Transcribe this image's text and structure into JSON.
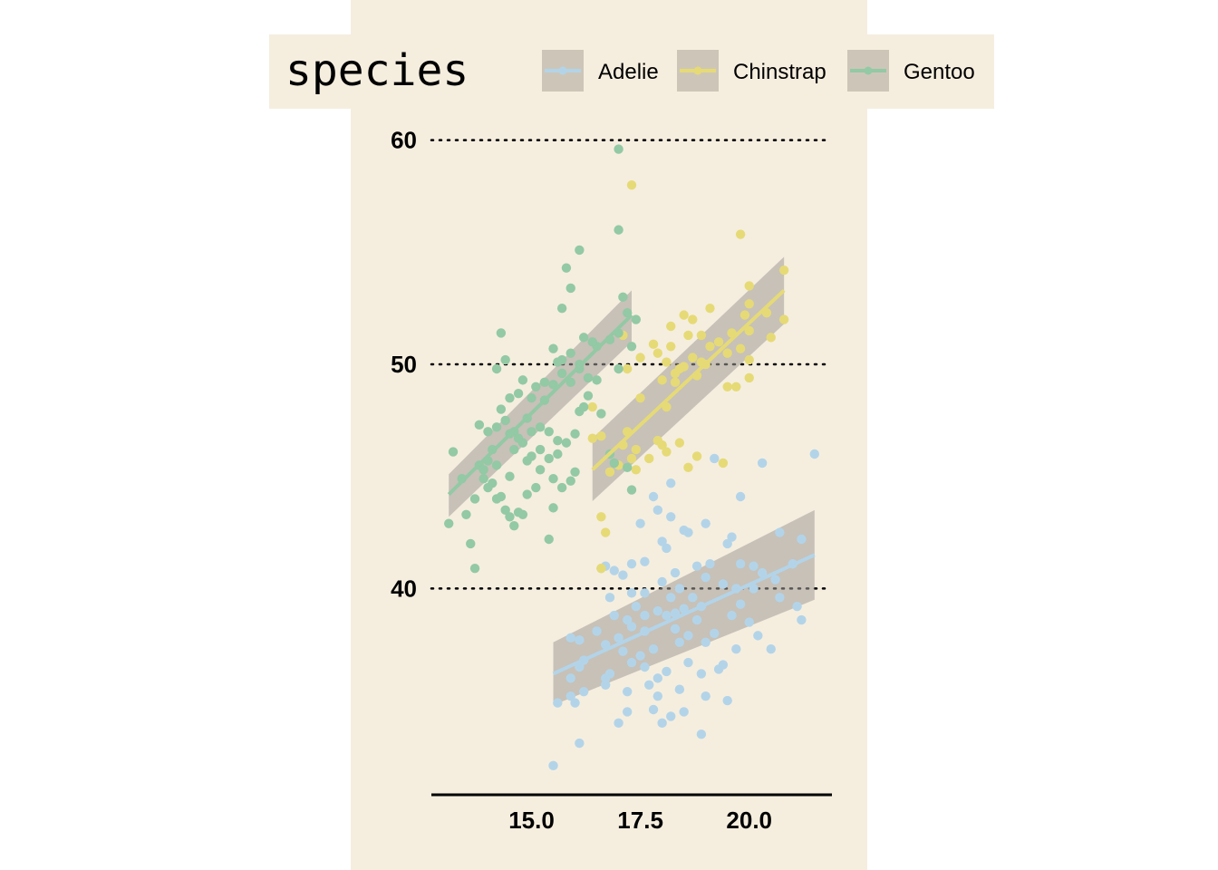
{
  "legend": {
    "title": "species",
    "entries": [
      {
        "name": "Adelie",
        "color": "#b3d4e8"
      },
      {
        "name": "Chinstrap",
        "color": "#e6da76"
      },
      {
        "name": "Gentoo",
        "color": "#93c9a4"
      }
    ]
  },
  "colors": {
    "panel_background": "#f5eedf",
    "ribbon": "#a19d97",
    "grid": "#000000"
  },
  "chart_data": {
    "type": "scatter",
    "title": "",
    "xlabel": "",
    "ylabel": "",
    "xlim": [
      12.7,
      21.9
    ],
    "ylim": [
      30.8,
      61.2
    ],
    "x_ticks": [
      15.0,
      17.5,
      20.0
    ],
    "x_tick_labels": [
      "15.0",
      "17.5",
      "20.0"
    ],
    "y_ticks": [
      40,
      50,
      60
    ],
    "y_tick_labels": [
      "40",
      "50",
      "60"
    ],
    "grid": "horizontal dotted major lines",
    "legend_position": "top",
    "series": [
      {
        "name": "Adelie",
        "color": "#b3d4e8",
        "fit": {
          "x": [
            15.5,
            21.5
          ],
          "y": [
            36.2,
            41.5
          ],
          "ci_low": [
            34.8,
            39.5
          ],
          "ci_high": [
            37.6,
            43.5
          ]
        },
        "points": [
          [
            15.5,
            32.1
          ],
          [
            16.1,
            33.1
          ],
          [
            17.0,
            34.0
          ],
          [
            17.2,
            34.5
          ],
          [
            17.8,
            34.6
          ],
          [
            18.0,
            34.0
          ],
          [
            18.2,
            34.3
          ],
          [
            18.5,
            34.5
          ],
          [
            18.9,
            33.5
          ],
          [
            19.5,
            35.0
          ],
          [
            19.0,
            35.2
          ],
          [
            18.4,
            35.5
          ],
          [
            17.9,
            35.2
          ],
          [
            17.2,
            35.4
          ],
          [
            16.7,
            35.7
          ],
          [
            15.9,
            35.2
          ],
          [
            16.2,
            35.4
          ],
          [
            15.9,
            36.0
          ],
          [
            16.1,
            36.5
          ],
          [
            16.8,
            36.2
          ],
          [
            17.3,
            36.7
          ],
          [
            18.1,
            36.3
          ],
          [
            17.5,
            37.0
          ],
          [
            17.6,
            36.5
          ],
          [
            18.9,
            36.2
          ],
          [
            19.3,
            36.4
          ],
          [
            18.6,
            36.7
          ],
          [
            19.4,
            36.6
          ],
          [
            20.5,
            37.3
          ],
          [
            19.7,
            37.3
          ],
          [
            19.0,
            37.6
          ],
          [
            18.4,
            37.6
          ],
          [
            17.8,
            37.3
          ],
          [
            17.1,
            37.2
          ],
          [
            16.7,
            37.5
          ],
          [
            16.1,
            37.7
          ],
          [
            15.9,
            37.8
          ],
          [
            16.5,
            38.1
          ],
          [
            17.3,
            38.3
          ],
          [
            17.6,
            38.1
          ],
          [
            18.3,
            38.2
          ],
          [
            18.6,
            37.9
          ],
          [
            19.2,
            38.0
          ],
          [
            18.8,
            38.6
          ],
          [
            18.1,
            38.8
          ],
          [
            17.2,
            38.6
          ],
          [
            17.6,
            38.8
          ],
          [
            17.9,
            39.0
          ],
          [
            18.5,
            39.1
          ],
          [
            18.9,
            39.2
          ],
          [
            19.6,
            38.8
          ],
          [
            20.0,
            38.5
          ],
          [
            19.8,
            39.3
          ],
          [
            20.7,
            39.6
          ],
          [
            20.1,
            40.0
          ],
          [
            20.6,
            40.4
          ],
          [
            21.1,
            39.2
          ],
          [
            21.2,
            38.6
          ],
          [
            21.0,
            41.1
          ],
          [
            21.5,
            46.0
          ],
          [
            21.2,
            42.2
          ],
          [
            20.7,
            42.5
          ],
          [
            20.3,
            45.6
          ],
          [
            20.1,
            41.0
          ],
          [
            20.3,
            40.7
          ],
          [
            19.8,
            41.1
          ],
          [
            19.5,
            42.0
          ],
          [
            19.6,
            42.3
          ],
          [
            19.8,
            44.1
          ],
          [
            19.0,
            42.9
          ],
          [
            18.6,
            42.5
          ],
          [
            18.2,
            43.2
          ],
          [
            18.0,
            42.1
          ],
          [
            17.8,
            44.1
          ],
          [
            17.9,
            43.5
          ],
          [
            17.5,
            42.9
          ],
          [
            17.3,
            41.1
          ],
          [
            17.1,
            40.6
          ],
          [
            16.9,
            40.8
          ],
          [
            16.7,
            41.0
          ],
          [
            16.6,
            40.9
          ],
          [
            16.8,
            39.6
          ],
          [
            17.3,
            39.8
          ],
          [
            17.6,
            39.8
          ],
          [
            18.0,
            40.3
          ],
          [
            18.3,
            40.7
          ],
          [
            18.8,
            41.0
          ],
          [
            19.1,
            41.1
          ],
          [
            19.4,
            40.2
          ],
          [
            18.7,
            39.6
          ],
          [
            18.4,
            40.0
          ],
          [
            17.4,
            39.2
          ],
          [
            16.9,
            38.8
          ],
          [
            18.1,
            41.8
          ],
          [
            18.5,
            42.6
          ],
          [
            18.2,
            44.7
          ],
          [
            19.2,
            45.8
          ],
          [
            17.6,
            41.2
          ],
          [
            18.3,
            38.9
          ],
          [
            19.0,
            40.5
          ],
          [
            16.7,
            36.0
          ],
          [
            17.9,
            36.0
          ],
          [
            15.6,
            34.9
          ],
          [
            16.0,
            34.9
          ],
          [
            17.7,
            35.7
          ],
          [
            18.2,
            39.6
          ],
          [
            19.7,
            40.0
          ],
          [
            20.2,
            37.9
          ],
          [
            16.2,
            36.8
          ],
          [
            17.0,
            37.8
          ]
        ]
      },
      {
        "name": "Chinstrap",
        "color": "#e6da76",
        "fit": {
          "x": [
            16.4,
            20.8
          ],
          "y": [
            45.3,
            53.3
          ],
          "ci_low": [
            43.9,
            51.8
          ],
          "ci_high": [
            46.7,
            54.8
          ]
        },
        "points": [
          [
            16.4,
            46.7
          ],
          [
            16.6,
            43.2
          ],
          [
            16.7,
            42.5
          ],
          [
            16.6,
            40.9
          ],
          [
            16.4,
            48.1
          ],
          [
            16.6,
            46.8
          ],
          [
            17.0,
            45.5
          ],
          [
            17.1,
            46.4
          ],
          [
            17.2,
            47.0
          ],
          [
            17.3,
            45.8
          ],
          [
            17.4,
            46.2
          ],
          [
            17.7,
            45.8
          ],
          [
            17.9,
            46.6
          ],
          [
            18.0,
            46.4
          ],
          [
            17.9,
            46.6
          ],
          [
            18.1,
            46.1
          ],
          [
            18.4,
            46.5
          ],
          [
            18.6,
            45.4
          ],
          [
            18.8,
            45.9
          ],
          [
            19.4,
            45.6
          ],
          [
            17.5,
            48.5
          ],
          [
            17.2,
            49.8
          ],
          [
            17.1,
            51.3
          ],
          [
            17.5,
            50.3
          ],
          [
            17.9,
            50.5
          ],
          [
            18.1,
            50.1
          ],
          [
            18.3,
            49.6
          ],
          [
            18.3,
            49.2
          ],
          [
            18.5,
            49.9
          ],
          [
            18.7,
            50.3
          ],
          [
            18.6,
            51.3
          ],
          [
            18.9,
            51.3
          ],
          [
            19.0,
            50.0
          ],
          [
            19.1,
            50.8
          ],
          [
            19.3,
            51.0
          ],
          [
            19.5,
            50.5
          ],
          [
            19.5,
            49.0
          ],
          [
            19.7,
            49.0
          ],
          [
            19.8,
            50.7
          ],
          [
            20.0,
            49.4
          ],
          [
            20.0,
            50.2
          ],
          [
            20.0,
            51.5
          ],
          [
            19.9,
            52.2
          ],
          [
            20.0,
            52.7
          ],
          [
            20.5,
            51.2
          ],
          [
            20.4,
            52.3
          ],
          [
            20.8,
            52.0
          ],
          [
            20.8,
            54.2
          ],
          [
            20.0,
            53.5
          ],
          [
            19.8,
            55.8
          ],
          [
            18.2,
            51.7
          ],
          [
            18.5,
            52.2
          ],
          [
            18.7,
            52.0
          ],
          [
            18.0,
            49.3
          ],
          [
            18.8,
            49.5
          ],
          [
            17.8,
            50.9
          ],
          [
            18.2,
            50.8
          ],
          [
            18.1,
            48.1
          ],
          [
            19.1,
            52.5
          ],
          [
            19.6,
            51.4
          ],
          [
            17.3,
            58.0
          ],
          [
            16.8,
            45.2
          ],
          [
            17.4,
            45.3
          ],
          [
            18.4,
            49.8
          ],
          [
            18.9,
            50.1
          ]
        ]
      },
      {
        "name": "Gentoo",
        "color": "#93c9a4",
        "fit": {
          "x": [
            13.1,
            17.3
          ],
          "y": [
            44.2,
            52.2
          ],
          "ci_low": [
            43.2,
            51.0
          ],
          "ci_high": [
            45.1,
            53.3
          ]
        },
        "points": [
          [
            13.1,
            42.9
          ],
          [
            13.2,
            46.1
          ],
          [
            13.4,
            44.9
          ],
          [
            13.5,
            43.3
          ],
          [
            13.6,
            42.0
          ],
          [
            13.7,
            44.0
          ],
          [
            13.8,
            45.5
          ],
          [
            13.9,
            45.3
          ],
          [
            14.0,
            45.7
          ],
          [
            14.0,
            44.5
          ],
          [
            14.2,
            44.0
          ],
          [
            14.4,
            43.5
          ],
          [
            14.5,
            43.2
          ],
          [
            14.6,
            42.8
          ],
          [
            14.7,
            43.4
          ],
          [
            14.8,
            43.3
          ],
          [
            14.5,
            45.0
          ],
          [
            14.9,
            45.7
          ],
          [
            15.0,
            45.9
          ],
          [
            15.1,
            44.5
          ],
          [
            15.2,
            46.2
          ],
          [
            15.4,
            45.8
          ],
          [
            15.5,
            44.9
          ],
          [
            15.7,
            44.5
          ],
          [
            15.9,
            44.8
          ],
          [
            16.0,
            45.2
          ],
          [
            14.0,
            47.0
          ],
          [
            14.2,
            47.2
          ],
          [
            14.4,
            47.5
          ],
          [
            14.6,
            47.0
          ],
          [
            14.8,
            46.5
          ],
          [
            15.0,
            47.0
          ],
          [
            15.2,
            47.2
          ],
          [
            15.4,
            47.0
          ],
          [
            15.6,
            46.6
          ],
          [
            15.8,
            46.5
          ],
          [
            16.0,
            46.9
          ],
          [
            16.1,
            47.9
          ],
          [
            14.5,
            48.5
          ],
          [
            14.7,
            48.7
          ],
          [
            14.8,
            49.3
          ],
          [
            15.0,
            48.5
          ],
          [
            15.1,
            49.0
          ],
          [
            15.3,
            49.2
          ],
          [
            15.5,
            49.1
          ],
          [
            15.7,
            49.6
          ],
          [
            15.9,
            49.2
          ],
          [
            16.1,
            49.8
          ],
          [
            16.3,
            49.4
          ],
          [
            16.5,
            49.3
          ],
          [
            14.2,
            49.8
          ],
          [
            14.4,
            50.2
          ],
          [
            15.5,
            50.7
          ],
          [
            15.7,
            50.2
          ],
          [
            15.9,
            50.5
          ],
          [
            16.1,
            50.0
          ],
          [
            16.2,
            51.2
          ],
          [
            16.5,
            50.8
          ],
          [
            16.8,
            51.1
          ],
          [
            17.0,
            51.4
          ],
          [
            17.2,
            52.3
          ],
          [
            17.4,
            52.0
          ],
          [
            17.1,
            53.0
          ],
          [
            15.7,
            52.5
          ],
          [
            15.9,
            53.4
          ],
          [
            15.8,
            54.3
          ],
          [
            16.1,
            55.1
          ],
          [
            17.0,
            56.0
          ],
          [
            17.0,
            59.6
          ],
          [
            14.3,
            51.4
          ],
          [
            14.3,
            48.0
          ],
          [
            13.8,
            47.3
          ],
          [
            14.1,
            46.2
          ],
          [
            13.9,
            44.9
          ],
          [
            14.9,
            44.2
          ],
          [
            15.5,
            43.6
          ],
          [
            13.7,
            40.9
          ],
          [
            15.4,
            42.2
          ],
          [
            16.9,
            45.6
          ],
          [
            17.2,
            45.4
          ],
          [
            17.3,
            44.4
          ],
          [
            16.8,
            46.0
          ],
          [
            16.6,
            47.8
          ],
          [
            16.3,
            48.6
          ],
          [
            17.3,
            50.8
          ],
          [
            17.0,
            49.8
          ],
          [
            15.6,
            50.1
          ],
          [
            15.3,
            48.4
          ],
          [
            14.6,
            46.2
          ],
          [
            14.9,
            47.6
          ],
          [
            15.2,
            45.3
          ],
          [
            15.6,
            46.0
          ],
          [
            16.2,
            48.1
          ],
          [
            16.4,
            51.0
          ],
          [
            14.1,
            44.7
          ],
          [
            14.5,
            46.9
          ],
          [
            14.2,
            45.5
          ],
          [
            14.3,
            44.1
          ],
          [
            14.7,
            46.7
          ]
        ]
      }
    ]
  }
}
